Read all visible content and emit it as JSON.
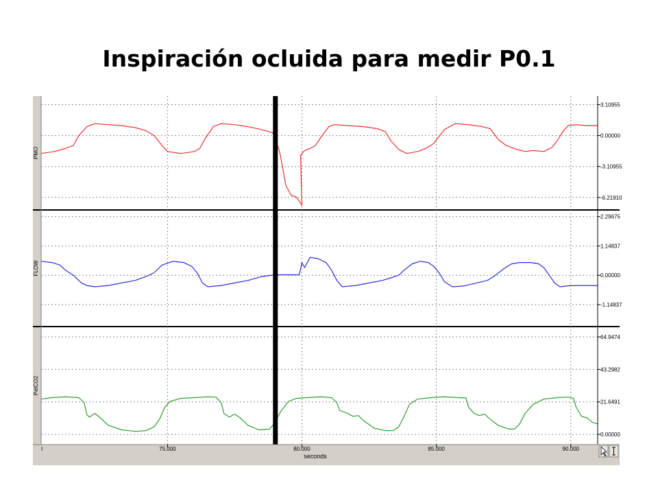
{
  "slide": {
    "title": "Inspiración ocluida para medir P0.1"
  },
  "chart_data": {
    "type": "line",
    "xlabel": "seconds",
    "xlim": [
      70.3,
      91.0
    ],
    "x_ticks": [
      {
        "value": 75,
        "label": "75.000"
      },
      {
        "value": 80,
        "label": "80.000"
      },
      {
        "value": 85,
        "label": "85.000"
      },
      {
        "value": 90,
        "label": "90.000"
      }
    ],
    "start_tick_label": "I",
    "marker_x": 79.0,
    "grid": true,
    "panels": [
      {
        "name": "PMO",
        "color": "#e83030",
        "ylim": [
          -7.2,
          3.7
        ],
        "ticks": [
          {
            "value": 3.10955,
            "label": "3.10955"
          },
          {
            "value": 0,
            "label": "0.00000"
          },
          {
            "value": -3.10955,
            "label": "-3.10955"
          },
          {
            "value": -6.2191,
            "label": "-6.21910"
          }
        ],
        "points": [
          [
            70.3,
            -1.8
          ],
          [
            70.8,
            -1.6
          ],
          [
            71.2,
            -1.3
          ],
          [
            71.5,
            -1.0
          ],
          [
            71.7,
            0.0
          ],
          [
            72.0,
            0.9
          ],
          [
            72.3,
            1.2
          ],
          [
            72.8,
            1.1
          ],
          [
            73.3,
            1.0
          ],
          [
            73.8,
            0.8
          ],
          [
            74.2,
            0.5
          ],
          [
            74.5,
            0.0
          ],
          [
            74.8,
            -1.0
          ],
          [
            75.0,
            -1.6
          ],
          [
            75.5,
            -1.8
          ],
          [
            76.0,
            -1.6
          ],
          [
            76.2,
            -1.3
          ],
          [
            76.4,
            -0.3
          ],
          [
            76.7,
            0.9
          ],
          [
            77.0,
            1.2
          ],
          [
            77.5,
            1.1
          ],
          [
            78.0,
            0.9
          ],
          [
            78.5,
            0.6
          ],
          [
            78.9,
            0.3
          ],
          [
            79.0,
            0.0
          ],
          [
            79.2,
            -2.0
          ],
          [
            79.4,
            -5.0
          ],
          [
            79.6,
            -6.0
          ],
          [
            79.8,
            -6.2
          ],
          [
            79.9,
            -6.6
          ],
          [
            80.0,
            -7.0
          ],
          [
            79.95,
            -2.0
          ],
          [
            80.1,
            -1.5
          ],
          [
            80.3,
            -1.3
          ],
          [
            80.5,
            -1.0
          ],
          [
            80.7,
            -0.2
          ],
          [
            81.0,
            0.9
          ],
          [
            81.2,
            1.1
          ],
          [
            81.7,
            1.0
          ],
          [
            82.3,
            0.9
          ],
          [
            82.8,
            0.7
          ],
          [
            83.1,
            0.4
          ],
          [
            83.3,
            -0.5
          ],
          [
            83.6,
            -1.4
          ],
          [
            83.9,
            -1.8
          ],
          [
            84.3,
            -1.6
          ],
          [
            84.6,
            -1.3
          ],
          [
            84.9,
            -0.8
          ],
          [
            85.3,
            0.6
          ],
          [
            85.7,
            1.2
          ],
          [
            86.2,
            1.1
          ],
          [
            86.7,
            0.9
          ],
          [
            87.0,
            0.7
          ],
          [
            87.3,
            -0.4
          ],
          [
            87.6,
            -1.0
          ],
          [
            88.0,
            -1.4
          ],
          [
            88.3,
            -1.6
          ],
          [
            88.6,
            -1.5
          ],
          [
            89.0,
            -1.6
          ],
          [
            89.3,
            -1.2
          ],
          [
            89.5,
            -0.5
          ],
          [
            89.7,
            0.4
          ],
          [
            89.9,
            1.0
          ],
          [
            90.2,
            1.1
          ],
          [
            90.6,
            1.0
          ],
          [
            91.0,
            1.0
          ]
        ]
      },
      {
        "name": "FLOW",
        "color": "#2b2bd6",
        "ylim": [
          -1.9,
          2.45
        ],
        "ticks": [
          {
            "value": 2.29675,
            "label": "2.29675"
          },
          {
            "value": 1.14837,
            "label": "1.14837"
          },
          {
            "value": 0,
            "label": "0.00000"
          },
          {
            "value": -1.14837,
            "label": "-1.14837"
          }
        ],
        "points": [
          [
            70.3,
            0.55
          ],
          [
            70.7,
            0.5
          ],
          [
            71.0,
            0.4
          ],
          [
            71.2,
            0.2
          ],
          [
            71.5,
            0.0
          ],
          [
            71.8,
            -0.3
          ],
          [
            72.0,
            -0.4
          ],
          [
            72.3,
            -0.45
          ],
          [
            72.8,
            -0.4
          ],
          [
            73.3,
            -0.3
          ],
          [
            73.8,
            -0.2
          ],
          [
            74.2,
            -0.05
          ],
          [
            74.5,
            0.1
          ],
          [
            74.8,
            0.4
          ],
          [
            75.2,
            0.55
          ],
          [
            75.6,
            0.5
          ],
          [
            75.9,
            0.35
          ],
          [
            76.1,
            0.1
          ],
          [
            76.3,
            -0.3
          ],
          [
            76.5,
            -0.45
          ],
          [
            77.0,
            -0.4
          ],
          [
            77.5,
            -0.3
          ],
          [
            78.0,
            -0.2
          ],
          [
            78.5,
            -0.05
          ],
          [
            79.0,
            0.02
          ],
          [
            79.5,
            0.02
          ],
          [
            79.9,
            0.02
          ],
          [
            80.0,
            0.5
          ],
          [
            80.1,
            0.3
          ],
          [
            80.3,
            0.7
          ],
          [
            80.6,
            0.65
          ],
          [
            80.9,
            0.5
          ],
          [
            81.1,
            0.2
          ],
          [
            81.3,
            -0.2
          ],
          [
            81.5,
            -0.45
          ],
          [
            82.0,
            -0.4
          ],
          [
            82.5,
            -0.3
          ],
          [
            83.0,
            -0.2
          ],
          [
            83.3,
            -0.1
          ],
          [
            83.6,
            0.0
          ],
          [
            83.8,
            0.2
          ],
          [
            84.1,
            0.45
          ],
          [
            84.4,
            0.55
          ],
          [
            84.7,
            0.5
          ],
          [
            84.9,
            0.35
          ],
          [
            85.1,
            0.1
          ],
          [
            85.3,
            -0.25
          ],
          [
            85.6,
            -0.45
          ],
          [
            86.0,
            -0.42
          ],
          [
            86.5,
            -0.3
          ],
          [
            86.9,
            -0.2
          ],
          [
            87.2,
            0.0
          ],
          [
            87.5,
            0.25
          ],
          [
            87.8,
            0.45
          ],
          [
            88.1,
            0.5
          ],
          [
            88.5,
            0.5
          ],
          [
            88.8,
            0.45
          ],
          [
            89.0,
            0.3
          ],
          [
            89.2,
            0.0
          ],
          [
            89.4,
            -0.3
          ],
          [
            89.6,
            -0.45
          ],
          [
            90.0,
            -0.4
          ],
          [
            90.4,
            -0.4
          ],
          [
            91.0,
            -0.4
          ]
        ]
      },
      {
        "name": "PetCO2",
        "color": "#2e9c2e",
        "ylim": [
          -5,
          70
        ],
        "ticks": [
          {
            "value": 64.9474,
            "label": "64.9474"
          },
          {
            "value": 43.2982,
            "label": "43.2982"
          },
          {
            "value": 21.6491,
            "label": "21.6491"
          },
          {
            "value": 0,
            "label": "0.00000"
          }
        ],
        "points": [
          [
            70.3,
            23.5
          ],
          [
            70.7,
            24.5
          ],
          [
            71.2,
            25.0
          ],
          [
            71.7,
            24.5
          ],
          [
            71.9,
            21.0
          ],
          [
            72.0,
            13.0
          ],
          [
            72.1,
            11.5
          ],
          [
            72.3,
            14.0
          ],
          [
            72.5,
            11.0
          ],
          [
            72.8,
            6.0
          ],
          [
            73.3,
            3.0
          ],
          [
            73.8,
            2.0
          ],
          [
            74.2,
            2.5
          ],
          [
            74.5,
            5.0
          ],
          [
            74.7,
            10.0
          ],
          [
            74.9,
            18.0
          ],
          [
            75.1,
            22.0
          ],
          [
            75.5,
            24.0
          ],
          [
            76.0,
            24.5
          ],
          [
            76.5,
            25.0
          ],
          [
            76.8,
            24.8
          ],
          [
            77.0,
            21.0
          ],
          [
            77.1,
            14.0
          ],
          [
            77.3,
            11.5
          ],
          [
            77.5,
            13.5
          ],
          [
            77.7,
            11.0
          ],
          [
            78.0,
            6.0
          ],
          [
            78.4,
            3.0
          ],
          [
            78.8,
            3.5
          ],
          [
            79.0,
            8.0
          ],
          [
            79.2,
            15.0
          ],
          [
            79.5,
            22.0
          ],
          [
            79.8,
            24.0
          ],
          [
            80.2,
            24.5
          ],
          [
            80.7,
            25.0
          ],
          [
            81.1,
            24.5
          ],
          [
            81.3,
            21.0
          ],
          [
            81.4,
            16.0
          ],
          [
            81.7,
            14.0
          ],
          [
            81.9,
            12.0
          ],
          [
            82.1,
            12.5
          ],
          [
            82.3,
            9.0
          ],
          [
            82.7,
            4.0
          ],
          [
            83.1,
            2.5
          ],
          [
            83.4,
            2.5
          ],
          [
            83.6,
            5.0
          ],
          [
            83.8,
            12.0
          ],
          [
            84.0,
            20.0
          ],
          [
            84.3,
            23.5
          ],
          [
            84.8,
            24.5
          ],
          [
            85.3,
            25.0
          ],
          [
            85.8,
            24.5
          ],
          [
            86.1,
            24.3
          ],
          [
            86.2,
            18.0
          ],
          [
            86.4,
            14.0
          ],
          [
            86.6,
            12.5
          ],
          [
            86.8,
            13.5
          ],
          [
            87.0,
            10.0
          ],
          [
            87.3,
            6.0
          ],
          [
            87.7,
            3.5
          ],
          [
            87.9,
            3.5
          ],
          [
            88.1,
            7.0
          ],
          [
            88.3,
            14.0
          ],
          [
            88.6,
            20.0
          ],
          [
            89.0,
            23.5
          ],
          [
            89.5,
            24.5
          ],
          [
            89.9,
            24.8
          ],
          [
            90.1,
            24.0
          ],
          [
            90.2,
            18.0
          ],
          [
            90.4,
            12.0
          ],
          [
            90.6,
            11.0
          ],
          [
            90.8,
            8.0
          ],
          [
            91.0,
            7.0
          ]
        ]
      }
    ]
  }
}
